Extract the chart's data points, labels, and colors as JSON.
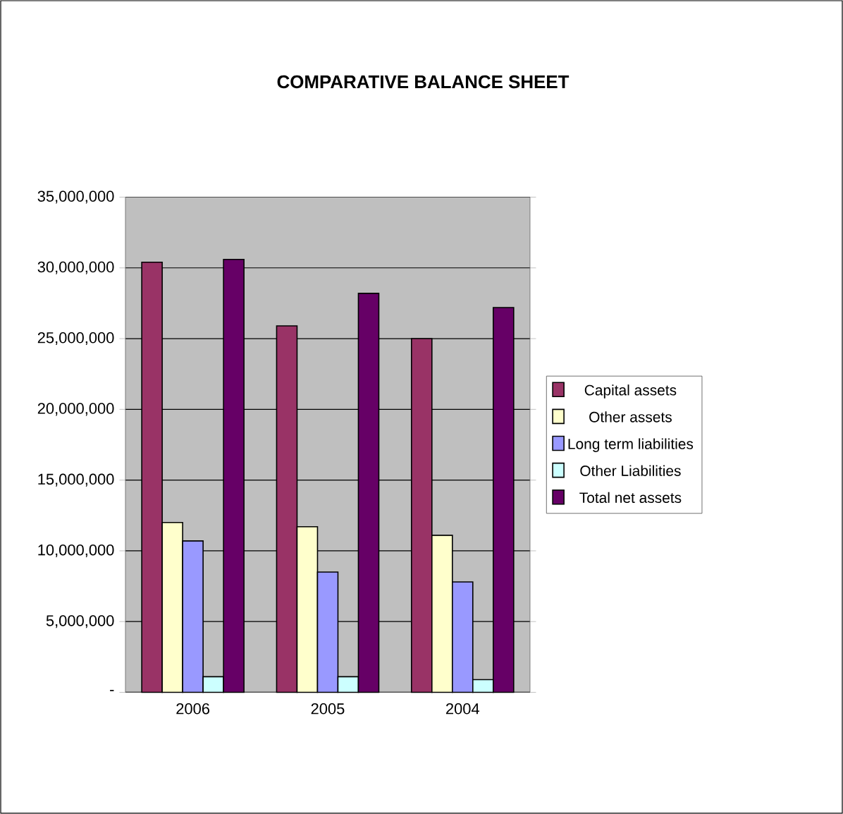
{
  "chart_data": {
    "type": "bar",
    "title": "COMPARATIVE BALANCE SHEET",
    "categories": [
      "2006",
      "2005",
      "2004"
    ],
    "series": [
      {
        "name": "Capital assets",
        "color": "#993366",
        "values": [
          30400000,
          25900000,
          25000000
        ]
      },
      {
        "name": "Other assets",
        "color": "#ffffcc",
        "values": [
          12000000,
          11700000,
          11100000
        ]
      },
      {
        "name": "Long term liabilities",
        "color": "#9999ff",
        "values": [
          10700000,
          8500000,
          7800000
        ]
      },
      {
        "name": "Other Liabilities",
        "color": "#ccffff",
        "values": [
          1100000,
          1100000,
          900000
        ]
      },
      {
        "name": "Total net assets",
        "color": "#660066",
        "values": [
          30600000,
          28200000,
          27200000
        ]
      }
    ],
    "ylim": [
      0,
      35000000
    ],
    "yticks": [
      {
        "value": 0,
        "label": "-"
      },
      {
        "value": 5000000,
        "label": "5,000,000"
      },
      {
        "value": 10000000,
        "label": "10,000,000"
      },
      {
        "value": 15000000,
        "label": "15,000,000"
      },
      {
        "value": 20000000,
        "label": "20,000,000"
      },
      {
        "value": 25000000,
        "label": "25,000,000"
      },
      {
        "value": 30000000,
        "label": "30,000,000"
      },
      {
        "value": 35000000,
        "label": "35,000,000"
      }
    ],
    "grid": "y",
    "legend": "right"
  }
}
